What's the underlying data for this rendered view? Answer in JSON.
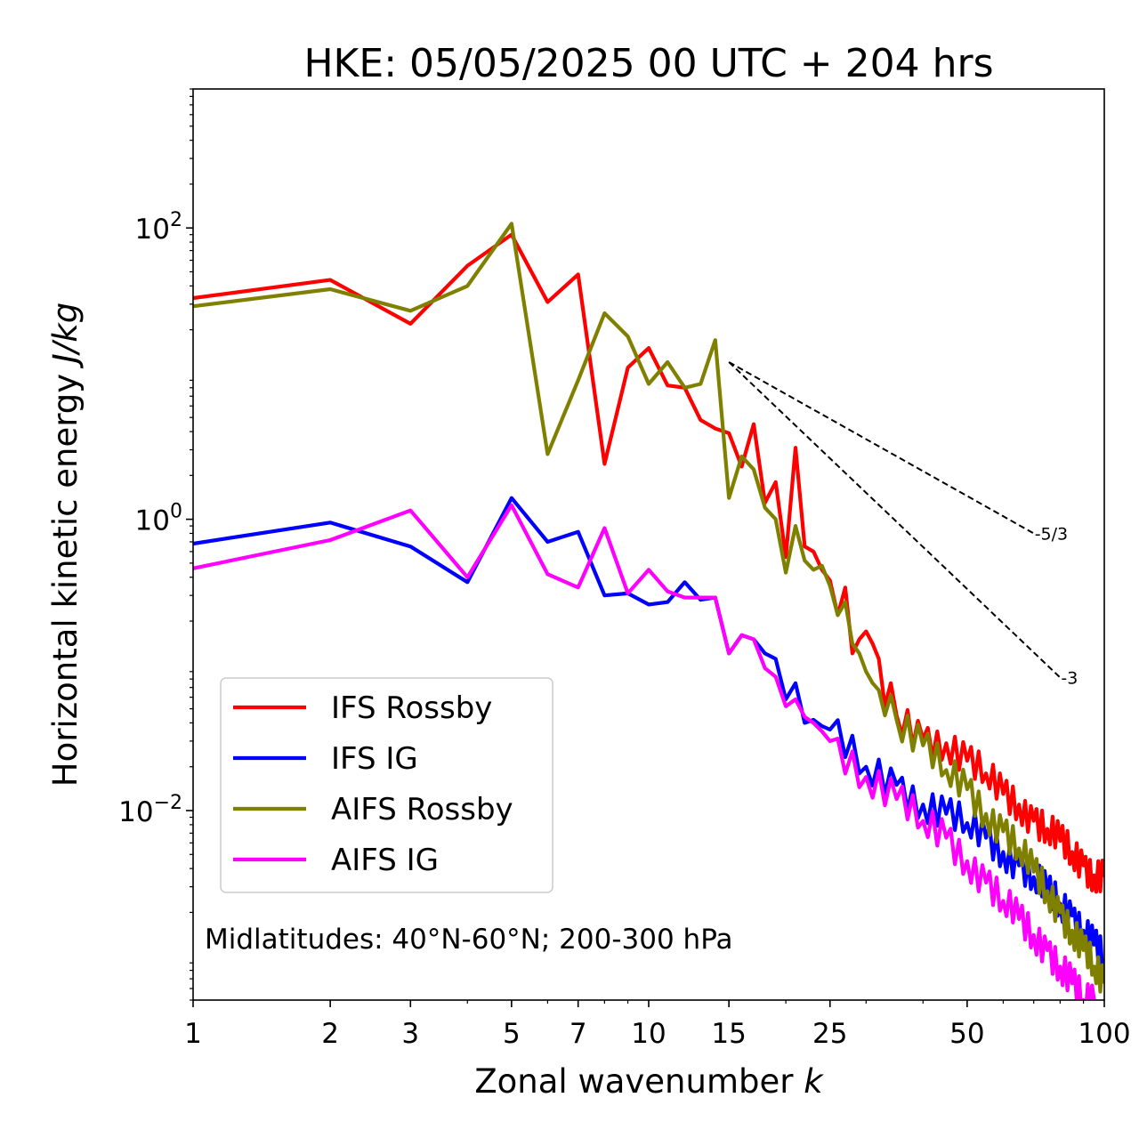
{
  "chart_data": {
    "type": "line",
    "title": "HKE: 05/05/2025 00 UTC + 204 hrs",
    "xlabel": "Zonal wavenumber k",
    "ylabel": "Horizontal kinetic energy J/kg",
    "xscale": "log",
    "yscale": "log",
    "xlim": [
      1,
      100
    ],
    "ylim": [
      0.0005,
      900
    ],
    "x_ticks": [
      1,
      2,
      3,
      5,
      7,
      10,
      15,
      25,
      50,
      100
    ],
    "y_ticks": [
      0.01,
      1,
      100
    ],
    "y_tick_labels": [
      {
        "base": "10",
        "exp": "−2"
      },
      {
        "base": "10",
        "exp": "0"
      },
      {
        "base": "10",
        "exp": "2"
      }
    ],
    "grid": false,
    "legend_position": "lower-left",
    "annotation": "Midlatitudes: 40°N-60°N; 200-300 hPa",
    "reference_slopes": [
      {
        "label": "-5/3",
        "x": [
          15,
          70
        ],
        "y": [
          12.0,
          0.8
        ]
      },
      {
        "label": "-3",
        "x": [
          15,
          80
        ],
        "y": [
          12.0,
          0.0819
        ]
      }
    ],
    "series": [
      {
        "name": "IFS Rossby",
        "color": "#ff0000",
        "anchors": [
          [
            1,
            33
          ],
          [
            2,
            44
          ],
          [
            3,
            22
          ],
          [
            4,
            55
          ],
          [
            5,
            90
          ],
          [
            6,
            31
          ],
          [
            7,
            48
          ],
          [
            8,
            2.4
          ],
          [
            9,
            11
          ],
          [
            10,
            15
          ],
          [
            11,
            8.3
          ],
          [
            12,
            8.0
          ],
          [
            13,
            4.8
          ],
          [
            14,
            4.2
          ],
          [
            15,
            3.9
          ],
          [
            16,
            2.3
          ],
          [
            17,
            4.5
          ],
          [
            18,
            1.3
          ],
          [
            19,
            1.8
          ],
          [
            20,
            0.55
          ],
          [
            21,
            3.1
          ],
          [
            22,
            0.65
          ],
          [
            23,
            0.6
          ],
          [
            24,
            0.45
          ],
          [
            25,
            0.38
          ],
          [
            26,
            0.22
          ],
          [
            27,
            0.34
          ],
          [
            28,
            0.12
          ],
          [
            29,
            0.15
          ],
          [
            30,
            0.17
          ],
          [
            31,
            0.14
          ],
          [
            32,
            0.11
          ],
          [
            33,
            0.052
          ],
          [
            34,
            0.075
          ],
          [
            35,
            0.045
          ],
          [
            40,
            0.031
          ],
          [
            45,
            0.029
          ],
          [
            50,
            0.022
          ],
          [
            55,
            0.018
          ],
          [
            60,
            0.013
          ],
          [
            65,
            0.011
          ],
          [
            70,
            0.0085
          ],
          [
            75,
            0.0075
          ],
          [
            80,
            0.0062
          ],
          [
            85,
            0.0052
          ],
          [
            90,
            0.0042
          ],
          [
            95,
            0.0036
          ],
          [
            100,
            0.0035
          ]
        ]
      },
      {
        "name": "IFS IG",
        "color": "#0000ff",
        "anchors": [
          [
            1,
            0.68
          ],
          [
            2,
            0.95
          ],
          [
            3,
            0.65
          ],
          [
            4,
            0.37
          ],
          [
            5,
            1.4
          ],
          [
            6,
            0.7
          ],
          [
            7,
            0.82
          ],
          [
            8,
            0.3
          ],
          [
            9,
            0.31
          ],
          [
            10,
            0.26
          ],
          [
            11,
            0.27
          ],
          [
            12,
            0.37
          ],
          [
            13,
            0.28
          ],
          [
            14,
            0.29
          ],
          [
            15,
            0.12
          ],
          [
            16,
            0.16
          ],
          [
            17,
            0.15
          ],
          [
            18,
            0.12
          ],
          [
            19,
            0.11
          ],
          [
            20,
            0.058
          ],
          [
            21,
            0.075
          ],
          [
            22,
            0.04
          ],
          [
            23,
            0.042
          ],
          [
            24,
            0.038
          ],
          [
            25,
            0.036
          ],
          [
            30,
            0.02
          ],
          [
            35,
            0.015
          ],
          [
            40,
            0.011
          ],
          [
            45,
            0.0095
          ],
          [
            50,
            0.0082
          ],
          [
            55,
            0.0065
          ],
          [
            60,
            0.0052
          ],
          [
            65,
            0.0042
          ],
          [
            70,
            0.0035
          ],
          [
            75,
            0.0028
          ],
          [
            80,
            0.0023
          ],
          [
            85,
            0.0019
          ],
          [
            90,
            0.0015
          ],
          [
            95,
            0.0012
          ],
          [
            100,
            0.00095
          ]
        ]
      },
      {
        "name": "AIFS Rossby",
        "color": "#808000",
        "anchors": [
          [
            1,
            29
          ],
          [
            2,
            38
          ],
          [
            3,
            27
          ],
          [
            4,
            40
          ],
          [
            5,
            107
          ],
          [
            6,
            2.8
          ],
          [
            7,
            9
          ],
          [
            8,
            26
          ],
          [
            9,
            18
          ],
          [
            10,
            8.5
          ],
          [
            11,
            12
          ],
          [
            12,
            8.0
          ],
          [
            13,
            8.5
          ],
          [
            14,
            17
          ],
          [
            15,
            1.4
          ],
          [
            16,
            2.7
          ],
          [
            17,
            2.2
          ],
          [
            18,
            1.2
          ],
          [
            19,
            1.0
          ],
          [
            20,
            0.43
          ],
          [
            21,
            0.9
          ],
          [
            22,
            0.52
          ],
          [
            23,
            0.45
          ],
          [
            24,
            0.48
          ],
          [
            25,
            0.35
          ],
          [
            26,
            0.22
          ],
          [
            27,
            0.27
          ],
          [
            28,
            0.14
          ],
          [
            29,
            0.12
          ],
          [
            30,
            0.09
          ],
          [
            31,
            0.075
          ],
          [
            32,
            0.067
          ],
          [
            33,
            0.045
          ],
          [
            34,
            0.062
          ],
          [
            35,
            0.042
          ],
          [
            40,
            0.028
          ],
          [
            45,
            0.019
          ],
          [
            50,
            0.014
          ],
          [
            55,
            0.0095
          ],
          [
            60,
            0.0072
          ],
          [
            65,
            0.0055
          ],
          [
            70,
            0.0038
          ],
          [
            75,
            0.0028
          ],
          [
            80,
            0.002
          ],
          [
            85,
            0.0015
          ],
          [
            90,
            0.0011
          ],
          [
            95,
            0.00085
          ],
          [
            100,
            0.00065
          ]
        ]
      },
      {
        "name": "AIFS IG",
        "color": "#ff00ff",
        "anchors": [
          [
            1,
            0.46
          ],
          [
            2,
            0.72
          ],
          [
            3,
            1.15
          ],
          [
            4,
            0.4
          ],
          [
            5,
            1.25
          ],
          [
            6,
            0.42
          ],
          [
            7,
            0.34
          ],
          [
            8,
            0.87
          ],
          [
            9,
            0.31
          ],
          [
            10,
            0.45
          ],
          [
            11,
            0.32
          ],
          [
            12,
            0.29
          ],
          [
            13,
            0.29
          ],
          [
            14,
            0.29
          ],
          [
            15,
            0.12
          ],
          [
            16,
            0.16
          ],
          [
            17,
            0.15
          ],
          [
            18,
            0.095
          ],
          [
            19,
            0.083
          ],
          [
            20,
            0.052
          ],
          [
            21,
            0.058
          ],
          [
            22,
            0.044
          ],
          [
            23,
            0.04
          ],
          [
            24,
            0.035
          ],
          [
            25,
            0.03
          ],
          [
            30,
            0.017
          ],
          [
            35,
            0.012
          ],
          [
            40,
            0.0085
          ],
          [
            45,
            0.0065
          ],
          [
            50,
            0.0045
          ],
          [
            55,
            0.0032
          ],
          [
            60,
            0.0024
          ],
          [
            65,
            0.0018
          ],
          [
            70,
            0.0014
          ],
          [
            75,
            0.0011
          ],
          [
            80,
            0.00085
          ],
          [
            85,
            0.00065
          ],
          [
            90,
            0.0005
          ],
          [
            95,
            0.0005
          ]
        ]
      }
    ]
  }
}
